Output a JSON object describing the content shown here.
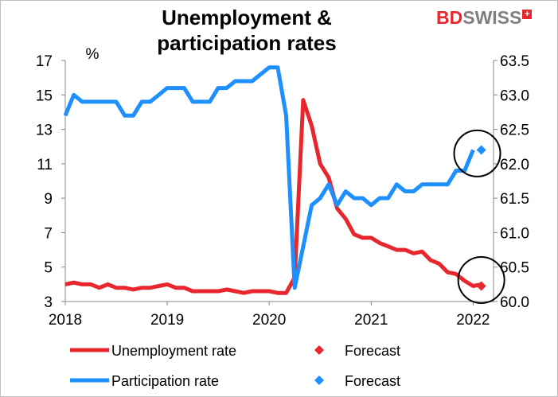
{
  "title_line1": "Unemployment &",
  "title_line2": "participation rates",
  "logo_bd": "BD",
  "logo_swiss": "SWISS",
  "logo_plus": "+",
  "colors": {
    "unemployment": "#e8262d",
    "participation": "#1e8fff",
    "circle": "#000000",
    "logo_red": "#e8262d",
    "logo_grey": "#7f7f7f"
  },
  "legend": {
    "unemployment": "Unemployment rate",
    "forecast1": "Forecast",
    "participation": "Participation rate",
    "forecast2": "Forecast"
  },
  "chart_data": {
    "type": "line",
    "left_axis": {
      "label": "%",
      "range": [
        3,
        17
      ],
      "ticks": [
        3,
        5,
        7,
        9,
        11,
        13,
        15,
        17
      ]
    },
    "right_axis": {
      "label": "",
      "range": [
        60.0,
        63.5
      ],
      "ticks": [
        "60.0",
        "60.5",
        "61.0",
        "61.5",
        "62.0",
        "62.5",
        "63.0",
        "63.5"
      ]
    },
    "x_axis": {
      "range": [
        2018,
        2022.2
      ],
      "ticks": [
        "2018",
        "2019",
        "2020",
        "2021",
        "2022"
      ]
    },
    "grid": false,
    "legend_position": "bottom",
    "series": [
      {
        "name": "Unemployment rate",
        "axis": "left",
        "x_start": 2018.0,
        "step": 0.08333,
        "values": [
          4.0,
          4.1,
          4.0,
          4.0,
          3.8,
          4.0,
          3.8,
          3.8,
          3.7,
          3.8,
          3.8,
          3.9,
          4.0,
          3.8,
          3.8,
          3.6,
          3.6,
          3.6,
          3.6,
          3.7,
          3.6,
          3.5,
          3.6,
          3.6,
          3.6,
          3.5,
          3.5,
          4.4,
          14.7,
          13.2,
          11.0,
          10.2,
          8.4,
          7.8,
          6.9,
          6.7,
          6.7,
          6.4,
          6.2,
          6.0,
          6.0,
          5.8,
          5.9,
          5.4,
          5.2,
          4.7,
          4.6,
          4.2,
          3.9,
          4.0
        ]
      },
      {
        "name": "Forecast",
        "axis": "left",
        "marker": "diamond",
        "x": [
          2022.08
        ],
        "values": [
          3.9
        ]
      },
      {
        "name": "Participation rate",
        "axis": "right",
        "x_start": 2018.0,
        "step": 0.08333,
        "values": [
          62.7,
          63.0,
          62.9,
          62.9,
          62.9,
          62.9,
          62.9,
          62.7,
          62.7,
          62.9,
          62.9,
          63.0,
          63.1,
          63.1,
          63.1,
          62.9,
          62.9,
          62.9,
          63.1,
          63.1,
          63.2,
          63.2,
          63.2,
          63.3,
          63.4,
          63.4,
          62.7,
          60.2,
          60.8,
          61.4,
          61.5,
          61.7,
          61.4,
          61.6,
          61.5,
          61.5,
          61.4,
          61.5,
          61.5,
          61.7,
          61.6,
          61.6,
          61.7,
          61.7,
          61.7,
          61.7,
          61.9,
          61.9,
          62.2
        ]
      },
      {
        "name": "Forecast",
        "axis": "right",
        "marker": "diamond",
        "x": [
          2022.08
        ],
        "values": [
          62.2
        ]
      }
    ],
    "annotations": [
      "circle around 2022 participation forecast",
      "circle around 2022 unemployment forecast"
    ]
  }
}
